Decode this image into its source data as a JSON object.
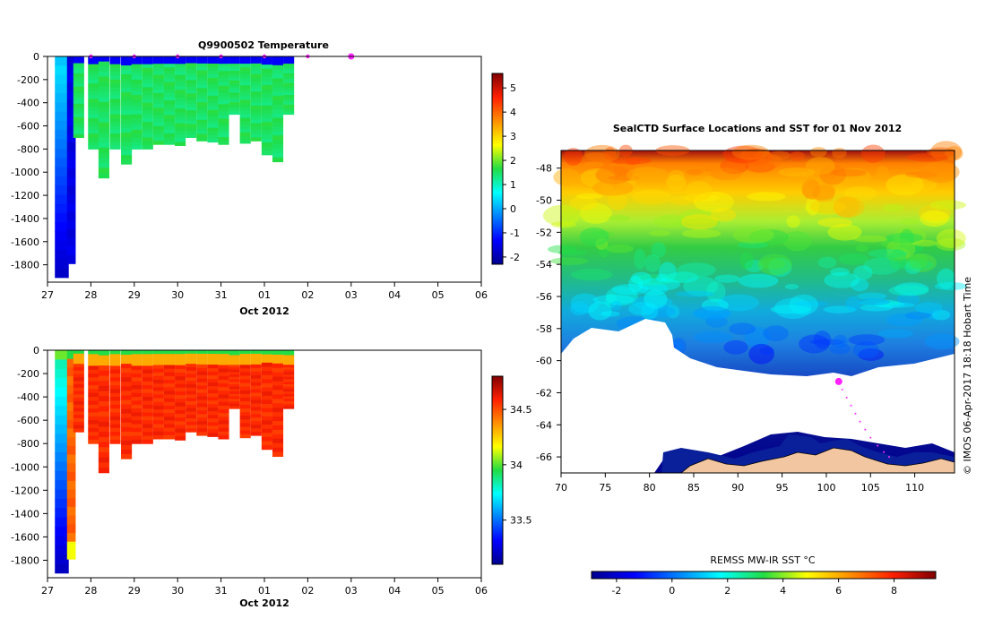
{
  "chart_data": [
    {
      "type": "heatmap",
      "title": "Q9900502  Temperature",
      "xlabel": "Oct 2012",
      "ylabel": "",
      "x_ticks": [
        "27",
        "28",
        "29",
        "30",
        "31",
        "01",
        "02",
        "03",
        "04",
        "05",
        "06"
      ],
      "y_ticks": [
        0,
        -200,
        -400,
        -600,
        -800,
        -1000,
        -1200,
        -1400,
        -1600,
        -1800
      ],
      "ylim": [
        -1950,
        0
      ],
      "colorbar_ticks": [
        5,
        4,
        3,
        2,
        1,
        0,
        -1,
        -2
      ],
      "colorbar_range": [
        -2.3,
        5.6
      ],
      "profile_markers_day": [
        28.0,
        29.0,
        30.0,
        31.0,
        32.0,
        33.0,
        34.0
      ],
      "profiles": [
        {
          "day": 27.33,
          "width_day": 0.32,
          "max_depth": 1910
        },
        {
          "day": 27.55,
          "width_day": 0.2,
          "max_depth": 1790
        },
        {
          "day": 27.72,
          "width_day": 0.25,
          "max_depth": 700
        },
        {
          "day": 28.06,
          "width_day": 0.25,
          "max_depth": 800
        },
        {
          "day": 28.3,
          "width_day": 0.25,
          "max_depth": 1050
        },
        {
          "day": 28.56,
          "width_day": 0.25,
          "max_depth": 800
        },
        {
          "day": 28.82,
          "width_day": 0.25,
          "max_depth": 930
        },
        {
          "day": 29.06,
          "width_day": 0.25,
          "max_depth": 800
        },
        {
          "day": 29.31,
          "width_day": 0.25,
          "max_depth": 800
        },
        {
          "day": 29.56,
          "width_day": 0.25,
          "max_depth": 760
        },
        {
          "day": 29.81,
          "width_day": 0.25,
          "max_depth": 760
        },
        {
          "day": 30.06,
          "width_day": 0.25,
          "max_depth": 770
        },
        {
          "day": 30.31,
          "width_day": 0.25,
          "max_depth": 700
        },
        {
          "day": 30.56,
          "width_day": 0.25,
          "max_depth": 730
        },
        {
          "day": 30.81,
          "width_day": 0.25,
          "max_depth": 740
        },
        {
          "day": 31.06,
          "width_day": 0.25,
          "max_depth": 760
        },
        {
          "day": 31.31,
          "width_day": 0.25,
          "max_depth": 500
        },
        {
          "day": 31.56,
          "width_day": 0.25,
          "max_depth": 750
        },
        {
          "day": 31.81,
          "width_day": 0.25,
          "max_depth": 730
        },
        {
          "day": 32.06,
          "width_day": 0.25,
          "max_depth": 850
        },
        {
          "day": 32.31,
          "width_day": 0.25,
          "max_depth": 910
        },
        {
          "day": 32.56,
          "width_day": 0.25,
          "max_depth": 500
        }
      ]
    },
    {
      "type": "heatmap",
      "title": "",
      "xlabel": "Oct 2012",
      "ylabel": "",
      "x_ticks": [
        "27",
        "28",
        "29",
        "30",
        "31",
        "01",
        "02",
        "03",
        "04",
        "05",
        "06"
      ],
      "y_ticks": [
        0,
        -200,
        -400,
        -600,
        -800,
        -1000,
        -1200,
        -1400,
        -1600,
        -1800
      ],
      "ylim": [
        -1950,
        0
      ],
      "colorbar_ticks": [
        34.5,
        34,
        33.5
      ],
      "colorbar_range": [
        33.1,
        34.8
      ]
    },
    {
      "type": "heatmap",
      "title": "SealCTD Surface Locations and SST for 01 Nov 2012",
      "xlabel": "",
      "ylabel": "",
      "x_ticks": [
        70,
        75,
        80,
        85,
        90,
        95,
        100,
        105,
        110
      ],
      "y_ticks": [
        -48,
        -50,
        -52,
        -54,
        -56,
        -58,
        -60,
        -62,
        -64,
        -66
      ],
      "xlim": [
        70,
        114.5
      ],
      "ylim": [
        -67.0,
        -46.9
      ],
      "colorbar_label": "REMSS MW-IR SST °C",
      "colorbar_ticks": [
        -2,
        0,
        2,
        4,
        6,
        8
      ],
      "colorbar_range": [
        -2.9,
        9.5
      ],
      "seal_position": {
        "lon": 101.4,
        "lat": -61.3
      }
    }
  ],
  "credit": "© IMOS 06-Apr-2017 18:18 Hobart Time"
}
